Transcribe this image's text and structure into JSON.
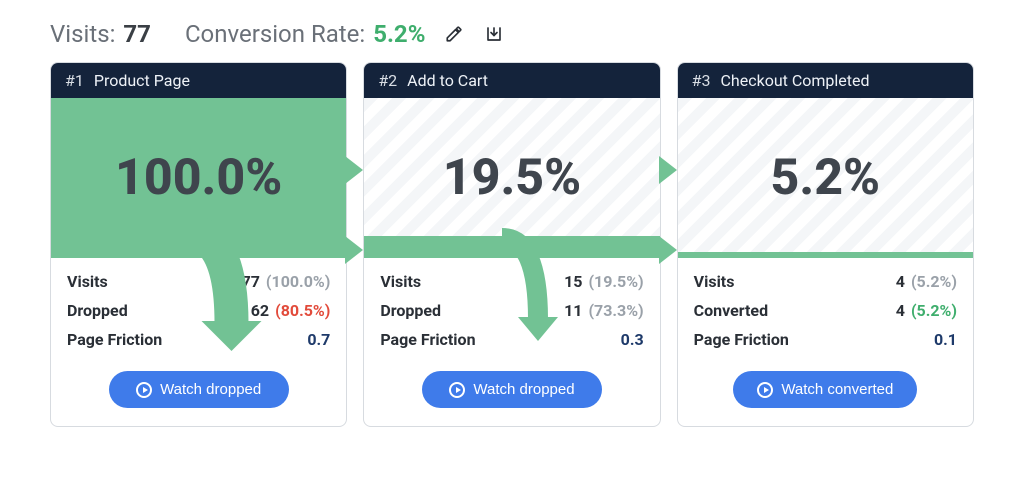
{
  "colors": {
    "accent_green": "#72c294",
    "header_bg": "#14233b",
    "button_bg": "#3f7bea",
    "drop_red": "#e24b3b",
    "text_dark": "#3f454d",
    "pct_gray": "#9aa1a9",
    "friction_blue": "#1e3a6a",
    "conv_green": "#3fae6d"
  },
  "summary": {
    "visits_label": "Visits:",
    "visits_value": "77",
    "conv_label": "Conversion Rate:",
    "conv_value": "5.2%"
  },
  "funnel": {
    "steps": [
      {
        "rank": "#1",
        "title": "Product Page",
        "pct": "100.0%",
        "fill_ratio": 1.0,
        "stats": [
          {
            "k": "Visits",
            "v": "77",
            "pct": "(100.0%)",
            "pct_color": "gray"
          },
          {
            "k": "Dropped",
            "v": "62",
            "pct": "(80.5%)",
            "pct_color": "red"
          },
          {
            "k": "Page Friction",
            "v": "0.7",
            "friction": true
          }
        ],
        "button_label": "Watch dropped",
        "drop_arrow_size": "large"
      },
      {
        "rank": "#2",
        "title": "Add to Cart",
        "pct": "19.5%",
        "fill_ratio": 0.195,
        "stats": [
          {
            "k": "Visits",
            "v": "15",
            "pct": "(19.5%)",
            "pct_color": "gray"
          },
          {
            "k": "Dropped",
            "v": "11",
            "pct": "(73.3%)",
            "pct_color": "gray"
          },
          {
            "k": "Page Friction",
            "v": "0.3",
            "friction": true
          }
        ],
        "button_label": "Watch dropped",
        "drop_arrow_size": "small"
      },
      {
        "rank": "#3",
        "title": "Checkout Completed",
        "pct": "5.2%",
        "fill_ratio": 0.052,
        "stats": [
          {
            "k": "Visits",
            "v": "4",
            "pct": "(5.2%)",
            "pct_color": "gray"
          },
          {
            "k": "Converted",
            "v": "4",
            "pct": "(5.2%)",
            "pct_color": "green"
          },
          {
            "k": "Page Friction",
            "v": "0.1",
            "friction": true
          }
        ],
        "button_label": "Watch converted",
        "drop_arrow_size": "none"
      }
    ]
  }
}
